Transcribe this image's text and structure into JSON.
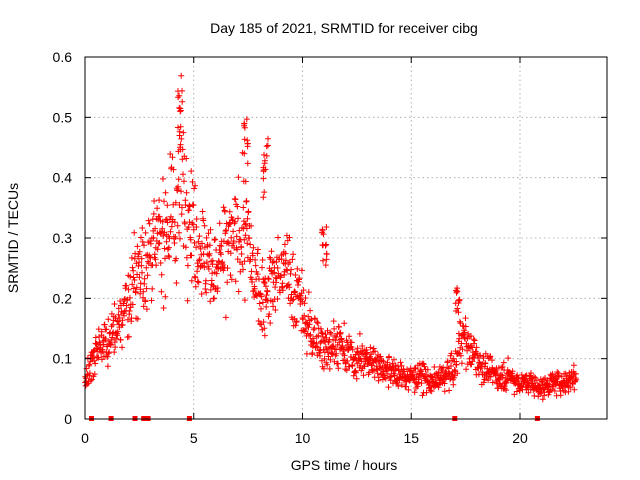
{
  "chart_data": {
    "type": "scatter",
    "title": "Day 185 of 2021, SRMTID for receiver cibg",
    "xlabel": "GPS time / hours",
    "ylabel": "SRMTID / TECUs",
    "xlim": [
      0,
      24
    ],
    "ylim": [
      0,
      0.6
    ],
    "x_ticks": [
      0,
      5,
      10,
      15,
      20
    ],
    "x_tick_labels": [
      "0",
      "5",
      "10",
      "15",
      "20"
    ],
    "y_ticks": [
      0,
      0.1,
      0.2,
      0.3,
      0.4,
      0.5,
      0.6
    ],
    "y_tick_labels": [
      "0",
      "0.1",
      "0.2",
      "0.3",
      "0.4",
      "0.5",
      "0.6"
    ],
    "grid": true,
    "marker": "+",
    "color": "#ff0000",
    "trend_x": [
      0.0,
      0.3,
      0.6,
      1.0,
      1.5,
      2.0,
      2.5,
      3.0,
      3.5,
      4.0,
      4.4,
      4.7,
      5.0,
      5.5,
      6.0,
      6.5,
      7.0,
      7.4,
      7.8,
      8.3,
      8.8,
      9.3,
      9.8,
      10.3,
      10.8,
      11.3,
      11.8,
      12.3,
      13.0,
      13.5,
      14.0,
      14.5,
      15.0,
      15.5,
      16.0,
      16.5,
      17.0,
      17.3,
      17.6,
      18.0,
      18.5,
      19.0,
      19.5,
      20.0,
      20.5,
      21.0,
      21.5,
      22.0,
      22.6
    ],
    "trend_y": [
      0.06,
      0.09,
      0.12,
      0.13,
      0.15,
      0.2,
      0.25,
      0.27,
      0.31,
      0.33,
      0.4,
      0.37,
      0.3,
      0.27,
      0.25,
      0.28,
      0.3,
      0.31,
      0.23,
      0.21,
      0.23,
      0.25,
      0.2,
      0.15,
      0.12,
      0.13,
      0.12,
      0.1,
      0.1,
      0.09,
      0.08,
      0.07,
      0.07,
      0.07,
      0.06,
      0.07,
      0.08,
      0.14,
      0.12,
      0.1,
      0.08,
      0.07,
      0.07,
      0.06,
      0.06,
      0.05,
      0.06,
      0.06,
      0.07
    ],
    "zero_value_hours": [
      0.3,
      1.2,
      2.3,
      2.7,
      2.8,
      2.9,
      4.8,
      17.0,
      20.8
    ],
    "peaks": [
      {
        "x": 4.4,
        "y": 0.57
      },
      {
        "x": 7.4,
        "y": 0.5
      },
      {
        "x": 8.3,
        "y": 0.47
      },
      {
        "x": 11.0,
        "y": 0.32
      },
      {
        "x": 17.1,
        "y": 0.22
      }
    ]
  }
}
